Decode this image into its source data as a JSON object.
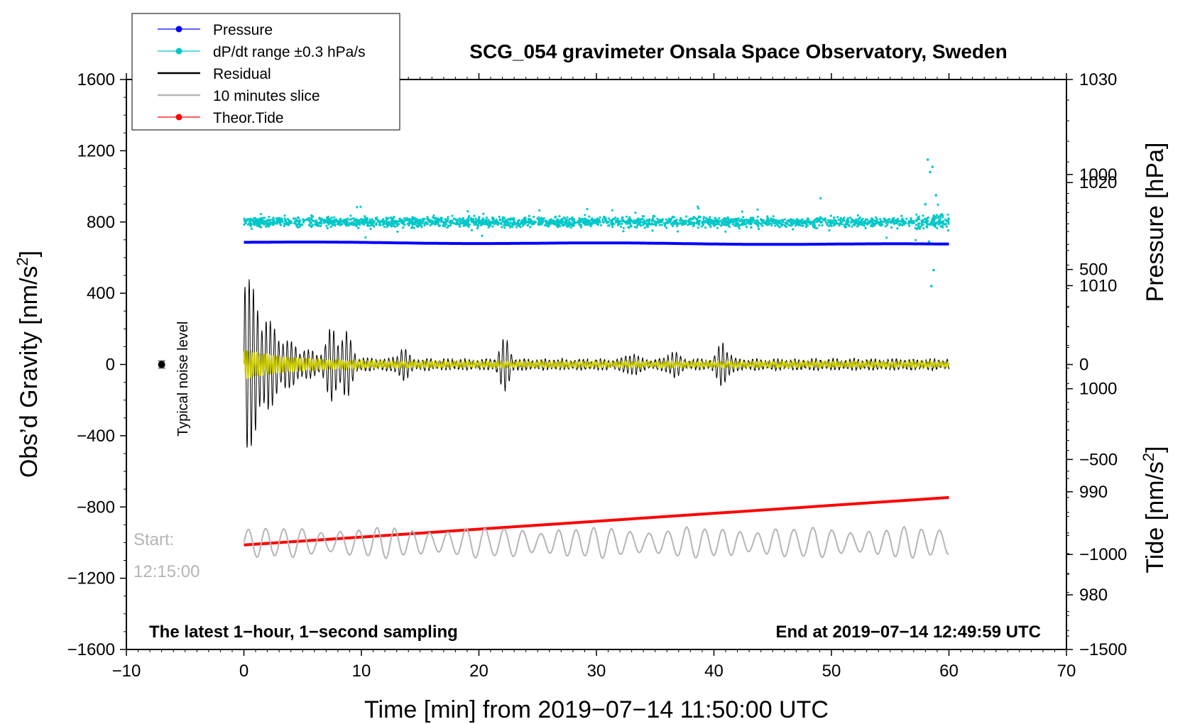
{
  "chart_data": {
    "type": "line",
    "title": "SCG_054 gravimeter Onsala Space Observatory, Sweden",
    "xlabel": "Time [min] from 2019−07−14 11:50:00 UTC",
    "ylabel_left": "Obs’d Gravity [nm/s",
    "ylabel_left_sup": "2",
    "ylabel_left_end": "]",
    "ylabel_right_pressure": "Pressure [hPa]",
    "ylabel_right_tide": "Tide [nm/s",
    "ylabel_right_tide_sup": "2",
    "ylabel_right_tide_end": "]",
    "xlim": [
      -10,
      70
    ],
    "ylim": [
      -1600,
      1600
    ],
    "x_ticks": [
      {
        "value": -10,
        "label": "−10"
      },
      {
        "value": 0,
        "label": "0"
      },
      {
        "value": 10,
        "label": "10"
      },
      {
        "value": 20,
        "label": "20"
      },
      {
        "value": 30,
        "label": "30"
      },
      {
        "value": 40,
        "label": "40"
      },
      {
        "value": 50,
        "label": "50"
      },
      {
        "value": 60,
        "label": "60"
      },
      {
        "value": 70,
        "label": "70"
      }
    ],
    "y_ticks": [
      {
        "value": 1600,
        "label": "1600"
      },
      {
        "value": 1200,
        "label": "1200"
      },
      {
        "value": 800,
        "label": "800"
      },
      {
        "value": 400,
        "label": "400"
      },
      {
        "value": 0,
        "label": "0"
      },
      {
        "value": -400,
        "label": "−400"
      },
      {
        "value": -800,
        "label": "−800"
      },
      {
        "value": -1200,
        "label": "−1200"
      },
      {
        "value": -1600,
        "label": "−1600"
      }
    ],
    "pressure_axis": {
      "range": [
        974.7,
        1030
      ],
      "ticks": [
        {
          "value": 1030,
          "label": "1030"
        },
        {
          "value": 1020,
          "label": "1020"
        },
        {
          "value": 1010,
          "label": "1010"
        },
        {
          "value": 1000,
          "label": "1000"
        },
        {
          "value": 990,
          "label": "990"
        },
        {
          "value": 980,
          "label": "980"
        }
      ]
    },
    "tide_axis": {
      "range": [
        -1500,
        1500
      ],
      "ticks": [
        {
          "value": 1000,
          "label": "1000"
        },
        {
          "value": 500,
          "label": "500"
        },
        {
          "value": 0,
          "label": "0"
        },
        {
          "value": -500,
          "label": "−500"
        },
        {
          "value": -1000,
          "label": "−1000"
        },
        {
          "value": -1500,
          "label": "−1500"
        }
      ]
    },
    "legend": {
      "position": "top-left",
      "entries": [
        {
          "label": "Pressure",
          "color": "#0000ff",
          "marker": true
        },
        {
          "label": "dP/dt range ±0.3 hPa/s",
          "color": "#00c8c8",
          "marker": true
        },
        {
          "label": "Residual",
          "color": "#000000",
          "marker": false
        },
        {
          "label": "10 minutes slice",
          "color": "#b5b5b5",
          "marker": false
        },
        {
          "label": "Theor.Tide",
          "color": "#ff0000",
          "marker": true
        }
      ]
    },
    "series": [
      {
        "name": "Pressure",
        "color": "#0000ff",
        "x_range": [
          0,
          60
        ],
        "value_hPa_start": 1014.2,
        "value_hPa_end": 1014.0
      },
      {
        "name": "dP/dt range ±0.3 hPa/s",
        "color": "#00c8c8",
        "x_range": [
          0,
          60
        ],
        "center_nm_s2": 800,
        "typical_spread_nm_s2": 40,
        "min_nm_s2": 440,
        "max_nm_s2": 1150
      },
      {
        "name": "Residual",
        "color": "#000000",
        "x_range": [
          0,
          60
        ],
        "max_amplitude_nm_s2": 600,
        "amplitude_at_end_nm_s2": 30
      },
      {
        "name": "Filtered residual",
        "color": "#c8c800",
        "x_range": [
          0,
          60
        ],
        "max_amplitude_nm_s2": 80
      },
      {
        "name": "10 minutes slice",
        "color": "#b5b5b5",
        "x_range": [
          0,
          60
        ],
        "center_nm_s2": -1000,
        "amplitude_nm_s2": 90
      },
      {
        "name": "Theor.Tide",
        "color": "#ff0000",
        "x_range": [
          0,
          60
        ],
        "tide_start": -950,
        "tide_end": -700
      }
    ],
    "noise_marker": {
      "x": -7,
      "y": 0,
      "error": 20,
      "label": "Typical noise level"
    },
    "annotations": {
      "slice_start_label": "Start:",
      "slice_start_time": "12:15:00",
      "sampling_note": "The latest 1−hour, 1−second sampling",
      "end_note": "End at 2019−07−14 12:49:59 UTC"
    }
  }
}
